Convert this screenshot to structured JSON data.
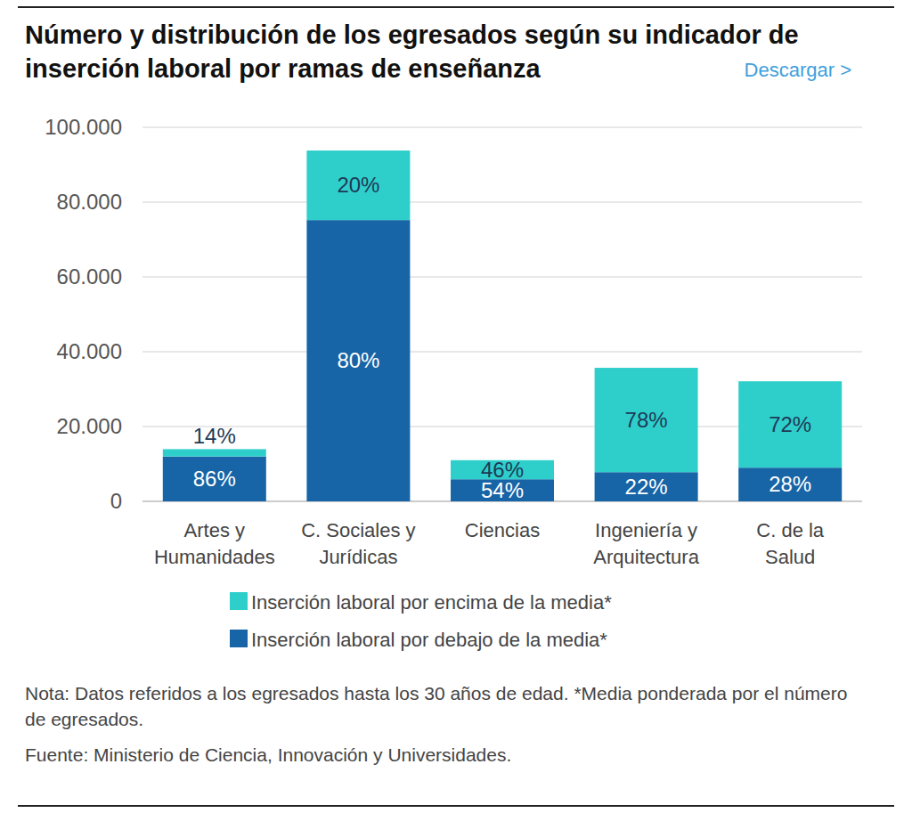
{
  "chart_data": {
    "type": "bar",
    "title": "Número y distribución de los egresados según su indicador de inserción laboral por ramas de enseñanza",
    "link": "Descargar >",
    "note": "Nota: Datos referidos a los egresados hasta los 30 años de edad. *Media ponderada por el número de egresados.",
    "source": "Fuente: Ministerio de Ciencia, Innovación y Universidades.",
    "categories": [
      "Artes y\nHumanidades",
      "C. Sociales y\nJurídicas",
      "Ciencias",
      "Ingeniería y\nArquitectura",
      "C. de la\nSalud"
    ],
    "series": [
      {
        "name": "Inserción laboral por debajo de la media*",
        "color": "#1764a6",
        "values": [
          12000,
          75200,
          5900,
          7800,
          9000
        ],
        "share_labels": [
          "86%",
          "80%",
          "54%",
          "22%",
          "28%"
        ]
      },
      {
        "name": "Inserción laboral por encima de la media*",
        "color": "#2ecfcb",
        "values": [
          1950,
          18600,
          5100,
          27900,
          23100
        ],
        "share_labels": [
          "14%",
          "20%",
          "46%",
          "78%",
          "72%"
        ]
      }
    ],
    "stacked": true,
    "grid": true,
    "ylim": [
      0,
      100000
    ],
    "yticks": [
      0,
      {
        "value": 20000,
        "label": "20.000"
      },
      {
        "value": 40000,
        "label": "40.000"
      },
      {
        "value": 60000,
        "label": "60.000"
      },
      {
        "value": 80000,
        "label": "80.000"
      },
      {
        "value": 100000,
        "label": "100.000"
      }
    ],
    "legend": "bottom"
  }
}
